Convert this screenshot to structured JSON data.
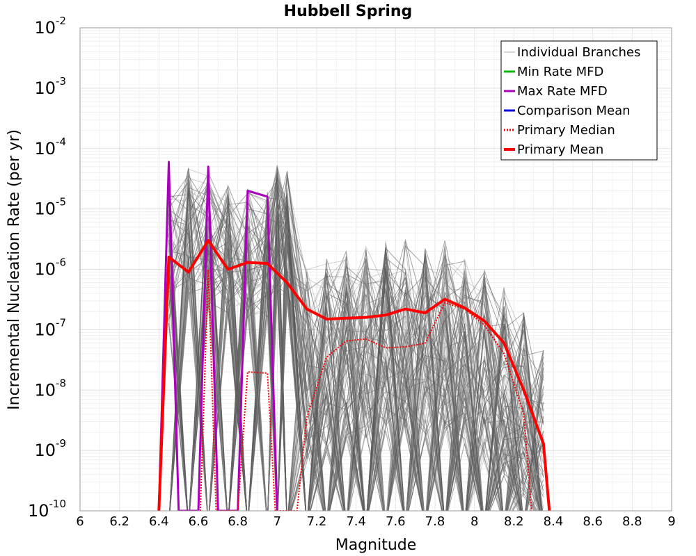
{
  "chart_data": {
    "type": "line",
    "title": "Hubbell Spring",
    "xlabel": "Magnitude",
    "ylabel": "Incremental Nucleation Rate (per yr)",
    "xlim": [
      6,
      9
    ],
    "ylim": [
      1e-10,
      0.01
    ],
    "yscale": "log",
    "grid": true,
    "legend_position": "top-right",
    "x_ticks": [
      "6",
      "6.2",
      "6.4",
      "6.6",
      "6.8",
      "7",
      "7.2",
      "7.4",
      "7.6",
      "7.8",
      "8",
      "8.2",
      "8.4",
      "8.6",
      "8.8",
      "9"
    ],
    "y_ticks": [
      {
        "base": "10",
        "exp": "-10",
        "value": 1e-10
      },
      {
        "base": "10",
        "exp": "-9",
        "value": 1e-09
      },
      {
        "base": "10",
        "exp": "-8",
        "value": 1e-08
      },
      {
        "base": "10",
        "exp": "-7",
        "value": 1e-07
      },
      {
        "base": "10",
        "exp": "-6",
        "value": 1e-06
      },
      {
        "base": "10",
        "exp": "-5",
        "value": 1e-05
      },
      {
        "base": "10",
        "exp": "-4",
        "value": 0.0001
      },
      {
        "base": "10",
        "exp": "-3",
        "value": 0.001
      },
      {
        "base": "10",
        "exp": "-2",
        "value": 0.01
      }
    ],
    "legend": [
      {
        "label": "Individual Branches",
        "color": "#aaaaaa",
        "style": "solid-thin"
      },
      {
        "label": "Min Rate MFD",
        "color": "#00bb00",
        "style": "solid"
      },
      {
        "label": "Max Rate MFD",
        "color": "#aa00bb",
        "style": "solid"
      },
      {
        "label": "Comparison Mean",
        "color": "#0000dd",
        "style": "solid"
      },
      {
        "label": " Primary Median",
        "color": "#ff0000",
        "style": "dotted"
      },
      {
        "label": "Primary Mean",
        "color": "#ff0000",
        "style": "solid-thick"
      }
    ],
    "series": [
      {
        "name": "Primary Mean",
        "color": "#ff0000",
        "points": [
          [
            6.4,
            1e-10
          ],
          [
            6.45,
            1.6e-06
          ],
          [
            6.55,
            9e-07
          ],
          [
            6.65,
            3e-06
          ],
          [
            6.75,
            1e-06
          ],
          [
            6.85,
            1.3e-06
          ],
          [
            6.95,
            1.25e-06
          ],
          [
            7.05,
            6e-07
          ],
          [
            7.15,
            2.2e-07
          ],
          [
            7.25,
            1.5e-07
          ],
          [
            7.35,
            1.55e-07
          ],
          [
            7.45,
            1.6e-07
          ],
          [
            7.55,
            1.75e-07
          ],
          [
            7.65,
            2.2e-07
          ],
          [
            7.75,
            1.9e-07
          ],
          [
            7.85,
            3.2e-07
          ],
          [
            7.95,
            2.3e-07
          ],
          [
            8.05,
            1.4e-07
          ],
          [
            8.15,
            6e-08
          ],
          [
            8.25,
            1e-08
          ],
          [
            8.35,
            1.3e-09
          ],
          [
            8.38,
            1e-10
          ]
        ]
      },
      {
        "name": "Primary Median",
        "color": "#ff0000",
        "dash": "dotted",
        "points": [
          [
            6.61,
            1e-10
          ],
          [
            6.65,
            1e-06
          ],
          [
            6.69,
            1e-10
          ],
          [
            6.8,
            1e-10
          ],
          [
            6.85,
            2e-08
          ],
          [
            6.95,
            1.9e-08
          ],
          [
            6.99,
            1e-10
          ],
          [
            7.1,
            1e-10
          ],
          [
            7.15,
            3.5e-09
          ],
          [
            7.25,
            3.5e-08
          ],
          [
            7.35,
            6.5e-08
          ],
          [
            7.45,
            7e-08
          ],
          [
            7.55,
            5e-08
          ],
          [
            7.65,
            5.2e-08
          ],
          [
            7.75,
            6e-08
          ],
          [
            7.85,
            2.8e-07
          ],
          [
            7.95,
            2.2e-07
          ],
          [
            8.05,
            1.2e-07
          ],
          [
            8.15,
            4e-08
          ],
          [
            8.25,
            4e-09
          ],
          [
            8.29,
            1e-10
          ]
        ]
      },
      {
        "name": "Max Rate MFD",
        "color": "#aa00bb",
        "points": [
          [
            6.4,
            1e-10
          ],
          [
            6.45,
            6e-05
          ],
          [
            6.5,
            1e-10
          ],
          [
            6.6,
            1e-10
          ],
          [
            6.65,
            5e-05
          ],
          [
            6.7,
            1e-10
          ],
          [
            6.8,
            1e-10
          ],
          [
            6.85,
            2e-05
          ],
          [
            6.95,
            1.6e-05
          ],
          [
            7.0,
            1e-10
          ]
        ]
      }
    ],
    "branch_peaks": [
      [
        6.45,
        2e-05
      ],
      [
        6.55,
        5e-05
      ],
      [
        6.65,
        4e-05
      ],
      [
        6.75,
        2.5e-05
      ],
      [
        6.85,
        2.2e-05
      ],
      [
        6.95,
        2e-05
      ],
      [
        7.0,
        5.5e-05
      ],
      [
        7.05,
        5e-05
      ],
      [
        7.15,
        1e-06
      ],
      [
        7.25,
        1.5e-06
      ],
      [
        7.35,
        2e-06
      ],
      [
        7.45,
        2.5e-06
      ],
      [
        7.55,
        3e-06
      ],
      [
        7.65,
        3.2e-06
      ],
      [
        7.75,
        2.5e-06
      ],
      [
        7.85,
        3e-06
      ],
      [
        7.95,
        1.5e-06
      ],
      [
        8.05,
        1e-06
      ],
      [
        8.15,
        6e-07
      ],
      [
        8.25,
        2e-07
      ],
      [
        8.35,
        5e-08
      ]
    ]
  }
}
